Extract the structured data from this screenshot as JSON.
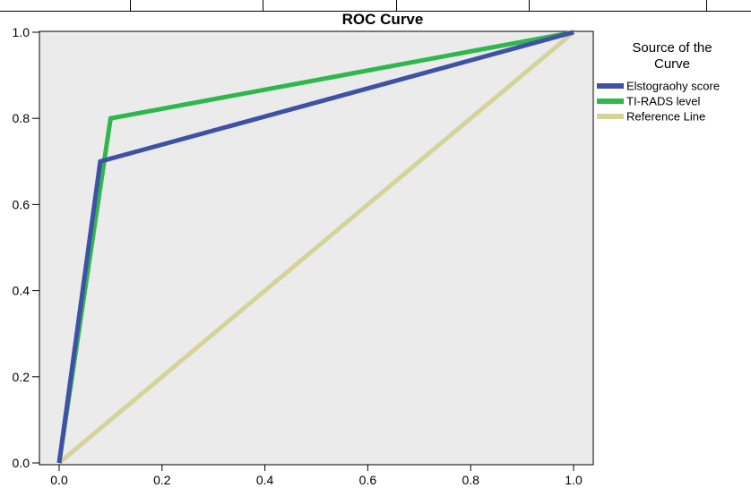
{
  "chart_data": {
    "type": "line",
    "title": "ROC Curve",
    "xlabel": "",
    "ylabel": "",
    "xlim": [
      0,
      1
    ],
    "ylim": [
      0,
      1
    ],
    "x_ticks": [
      "0.0",
      "0.2",
      "0.4",
      "0.6",
      "0.8",
      "1.0"
    ],
    "y_ticks": [
      "0.0",
      "0.2",
      "0.4",
      "0.6",
      "0.8",
      "1.0"
    ],
    "grid": false,
    "plot_background": "#ebebeb",
    "legend": {
      "title_lines": [
        "Source of the",
        "Curve"
      ],
      "placement": "right"
    },
    "series": [
      {
        "name": "Elstograohy score",
        "color": "#3f51a6",
        "points": [
          [
            0,
            0
          ],
          [
            0.08,
            0.7
          ],
          [
            1,
            1
          ]
        ]
      },
      {
        "name": "TI-RADS level",
        "color": "#2eb84b",
        "points": [
          [
            0,
            0
          ],
          [
            0.1,
            0.8
          ],
          [
            1,
            1
          ]
        ]
      },
      {
        "name": "Reference Line",
        "color": "#d5d39a",
        "points": [
          [
            0,
            0
          ],
          [
            1,
            1
          ]
        ]
      }
    ]
  }
}
